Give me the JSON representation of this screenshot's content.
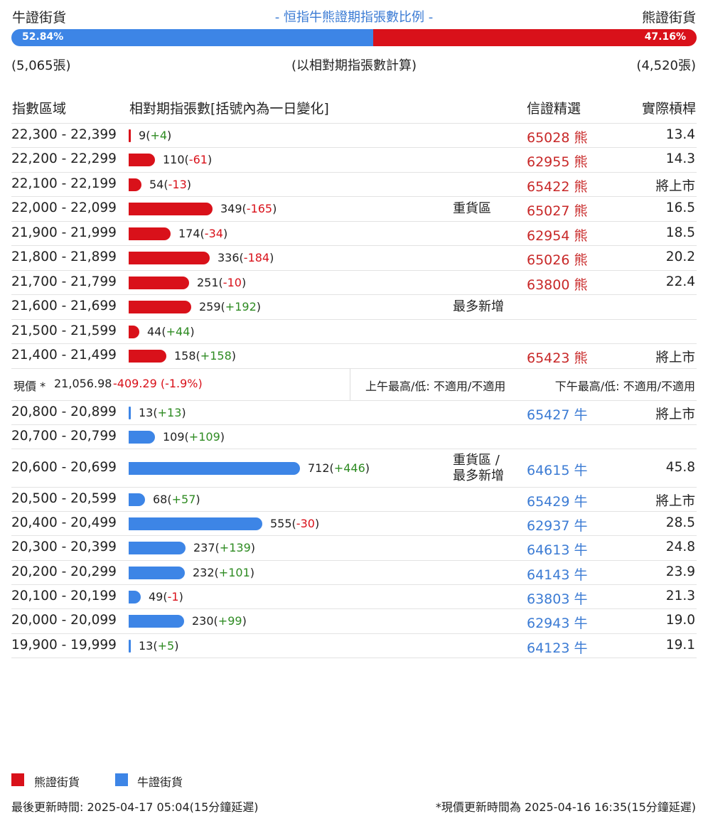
{
  "header": {
    "bull_label": "牛證街貨",
    "bear_label": "熊證街貨",
    "title": "- 恒指牛熊證期指張數比例 -",
    "bull_pct": "52.84%",
    "bear_pct": "47.16%",
    "bull_ratio": 0.5284,
    "bull_count": "(5,065張)",
    "bear_count": "(4,520張)",
    "calc_note": "(以相對期指張數計算)"
  },
  "columns": {
    "range": "指數區域",
    "contracts": "相對期指張數[括號內為一日變化]",
    "pick": "信證精選",
    "leverage": "實際槓桿"
  },
  "bear_rows": [
    {
      "range": "22,300 - 22,399",
      "qty": "9",
      "chg": "+4",
      "note": "",
      "code": "65028",
      "type": "熊",
      "lev": "13.4"
    },
    {
      "range": "22,200 - 22,299",
      "qty": "110",
      "chg": "-61",
      "note": "",
      "code": "62955",
      "type": "熊",
      "lev": "14.3"
    },
    {
      "range": "22,100 - 22,199",
      "qty": "54",
      "chg": "-13",
      "note": "",
      "code": "65422",
      "type": "熊",
      "lev": "將上市"
    },
    {
      "range": "22,000 - 22,099",
      "qty": "349",
      "chg": "-165",
      "note": "重貨區",
      "code": "65027",
      "type": "熊",
      "lev": "16.5"
    },
    {
      "range": "21,900 - 21,999",
      "qty": "174",
      "chg": "-34",
      "note": "",
      "code": "62954",
      "type": "熊",
      "lev": "18.5"
    },
    {
      "range": "21,800 - 21,899",
      "qty": "336",
      "chg": "-184",
      "note": "",
      "code": "65026",
      "type": "熊",
      "lev": "20.2"
    },
    {
      "range": "21,700 - 21,799",
      "qty": "251",
      "chg": "-10",
      "note": "",
      "code": "63800",
      "type": "熊",
      "lev": "22.4"
    },
    {
      "range": "21,600 - 21,699",
      "qty": "259",
      "chg": "+192",
      "note": "最多新增",
      "code": "",
      "type": "",
      "lev": ""
    },
    {
      "range": "21,500 - 21,599",
      "qty": "44",
      "chg": "+44",
      "note": "",
      "code": "",
      "type": "",
      "lev": ""
    },
    {
      "range": "21,400 - 21,499",
      "qty": "158",
      "chg": "+158",
      "note": "",
      "code": "65423",
      "type": "熊",
      "lev": "將上市"
    }
  ],
  "current": {
    "label": "現價 *",
    "price": "21,056.98",
    "change": "-409.29 (-1.9%)",
    "am": "上午最高/低: 不適用/不適用",
    "pm": "下午最高/低: 不適用/不適用"
  },
  "bull_rows": [
    {
      "range": "20,800 - 20,899",
      "qty": "13",
      "chg": "+13",
      "note": "",
      "code": "65427",
      "type": "牛",
      "lev": "將上市"
    },
    {
      "range": "20,700 - 20,799",
      "qty": "109",
      "chg": "+109",
      "note": "",
      "code": "",
      "type": "",
      "lev": ""
    },
    {
      "range": "20,600 - 20,699",
      "qty": "712",
      "chg": "+446",
      "note": "重貨區 /\n最多新增",
      "code": "64615",
      "type": "牛",
      "lev": "45.8"
    },
    {
      "range": "20,500 - 20,599",
      "qty": "68",
      "chg": "+57",
      "note": "",
      "code": "65429",
      "type": "牛",
      "lev": "將上市"
    },
    {
      "range": "20,400 - 20,499",
      "qty": "555",
      "chg": "-30",
      "note": "",
      "code": "62937",
      "type": "牛",
      "lev": "28.5"
    },
    {
      "range": "20,300 - 20,399",
      "qty": "237",
      "chg": "+139",
      "note": "",
      "code": "64613",
      "type": "牛",
      "lev": "24.8"
    },
    {
      "range": "20,200 - 20,299",
      "qty": "232",
      "chg": "+101",
      "note": "",
      "code": "64143",
      "type": "牛",
      "lev": "23.9"
    },
    {
      "range": "20,100 - 20,199",
      "qty": "49",
      "chg": "-1",
      "note": "",
      "code": "63803",
      "type": "牛",
      "lev": "21.3"
    },
    {
      "range": "20,000 - 20,099",
      "qty": "230",
      "chg": "+99",
      "note": "",
      "code": "62943",
      "type": "牛",
      "lev": "19.0"
    },
    {
      "range": "19,900 - 19,999",
      "qty": "13",
      "chg": "+5",
      "note": "",
      "code": "64123",
      "type": "牛",
      "lev": "19.1"
    }
  ],
  "legend": {
    "bear": "熊證街貨",
    "bull": "牛證街貨"
  },
  "footer": {
    "updated": "最後更新時間: 2025-04-17 05:04(15分鐘延遲)",
    "price_updated": "*現價更新時間為 2025-04-16 16:35(15分鐘延遲)"
  },
  "colors": {
    "bear": "#d9111a",
    "bull": "#3d85e6",
    "positive": "#2e8b22",
    "negative": "#d9111a"
  }
}
